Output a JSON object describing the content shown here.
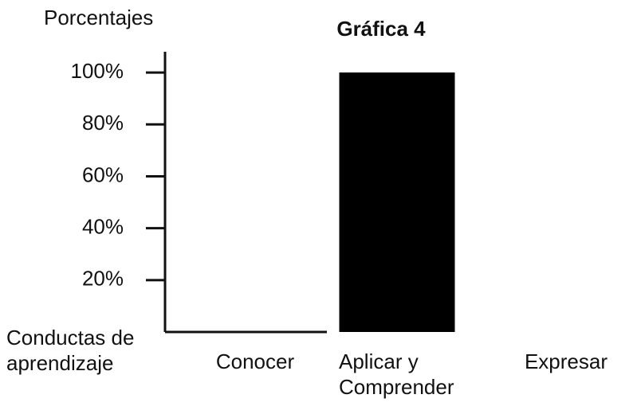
{
  "chart_data": {
    "type": "bar",
    "title": "Gráfica 4",
    "y_label": "Porcentajes",
    "x_label": "Conductas de aprendizaje",
    "categories": [
      "Conocer",
      "Aplicar y Comprender",
      "Expresar"
    ],
    "values": [
      0,
      100,
      0
    ],
    "color": "#000000",
    "ylim": [
      0,
      108
    ],
    "yticks": [
      {
        "value": 20,
        "label": "20%"
      },
      {
        "value": 40,
        "label": "40%"
      },
      {
        "value": 60,
        "label": "60%"
      },
      {
        "value": 80,
        "label": "80%"
      },
      {
        "value": 100,
        "label": "100%"
      }
    ],
    "grid": false
  }
}
